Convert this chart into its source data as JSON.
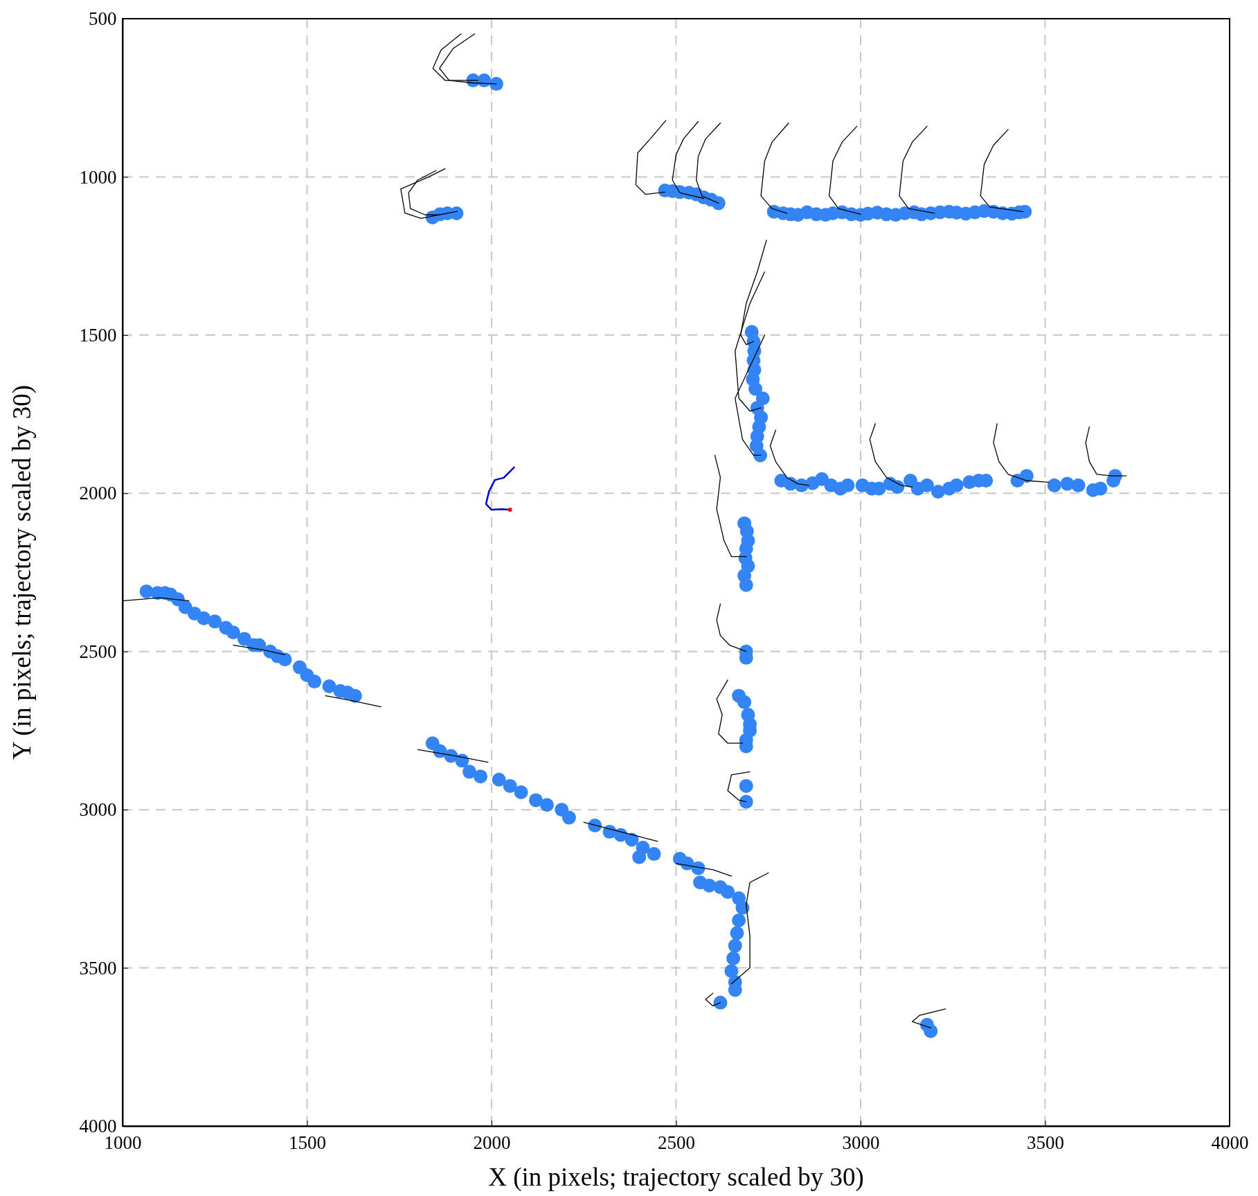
{
  "chart_data": {
    "type": "scatter",
    "xlabel": "X (in pixels; trajectory scaled by 30)",
    "ylabel": "Y (in pixels; trajectory scaled by 30)",
    "xlim": [
      1000,
      4000
    ],
    "xticks": [
      1000,
      1500,
      2000,
      2500,
      3000,
      3500,
      4000
    ],
    "ylim": [
      4000,
      500
    ],
    "yticks": [
      500,
      1000,
      1500,
      2000,
      2500,
      3000,
      3500,
      4000
    ],
    "grid": true,
    "line_style": "solid",
    "series": [
      {
        "type": "line",
        "color": "#000000",
        "x": [
          1954,
          1896,
          1859,
          1885,
          1950,
          2013
        ],
        "values": [
          548,
          594,
          657,
          695,
          703,
          706
        ]
      },
      {
        "type": "line",
        "color": "#000000",
        "x": [
          1917,
          1863,
          1841,
          1874,
          1963
        ],
        "values": [
          548,
          599,
          657,
          695,
          695
        ]
      },
      {
        "type": "line",
        "color": "#000000",
        "x": [
          1874,
          1830,
          1754,
          1765,
          1809,
          1907
        ],
        "values": [
          974,
          1000,
          1038,
          1114,
          1131,
          1109
        ]
      },
      {
        "type": "line",
        "color": "#000000",
        "x": [
          1850,
          1800,
          1775,
          1780,
          1820,
          1860
        ],
        "values": [
          980,
          1010,
          1050,
          1100,
          1120,
          1120
        ]
      },
      {
        "type": "line",
        "color": "#000000",
        "x": [
          2472,
          2430,
          2396,
          2391,
          2417,
          2470
        ],
        "values": [
          822,
          880,
          924,
          1025,
          1055,
          1048
        ]
      },
      {
        "type": "line",
        "color": "#000000",
        "x": [
          2560,
          2520,
          2500,
          2490,
          2510,
          2575
        ],
        "values": [
          825,
          880,
          930,
          1010,
          1050,
          1068
        ]
      },
      {
        "type": "line",
        "color": "#000000",
        "x": [
          2620,
          2580,
          2560,
          2555,
          2570,
          2615
        ],
        "values": [
          830,
          880,
          935,
          1010,
          1060,
          1083
        ]
      },
      {
        "type": "line",
        "color": "#000000",
        "x": [
          2805,
          2760,
          2740,
          2730,
          2760,
          2800
        ],
        "values": [
          830,
          890,
          950,
          1060,
          1100,
          1115
        ]
      },
      {
        "type": "line",
        "color": "#000000",
        "x": [
          2990,
          2950,
          2925,
          2915,
          2940,
          3000
        ],
        "values": [
          840,
          890,
          950,
          1060,
          1100,
          1118
        ]
      },
      {
        "type": "line",
        "color": "#000000",
        "x": [
          3180,
          3140,
          3115,
          3105,
          3130,
          3200
        ],
        "values": [
          840,
          890,
          950,
          1060,
          1100,
          1115
        ]
      },
      {
        "type": "line",
        "color": "#000000",
        "x": [
          3400,
          3360,
          3335,
          3325,
          3350,
          3440
        ],
        "values": [
          850,
          900,
          960,
          1060,
          1095,
          1110
        ]
      },
      {
        "type": "line",
        "color": "#000000",
        "x": [
          2745,
          2720,
          2690,
          2675,
          2690,
          2710
        ],
        "values": [
          1200,
          1300,
          1400,
          1500,
          1530,
          1520
        ]
      },
      {
        "type": "line",
        "color": "#000000",
        "x": [
          2740,
          2700,
          2660,
          2670,
          2700,
          2730
        ],
        "values": [
          1300,
          1400,
          1550,
          1700,
          1740,
          1730
        ]
      },
      {
        "type": "line",
        "color": "#000000",
        "x": [
          2740,
          2700,
          2660,
          2680,
          2710,
          2730
        ],
        "values": [
          1500,
          1600,
          1700,
          1830,
          1880,
          1880
        ]
      },
      {
        "type": "line",
        "color": "#000000",
        "x": [
          2770,
          2755,
          2770,
          2800,
          2830,
          2860
        ],
        "values": [
          1800,
          1850,
          1900,
          1950,
          1970,
          1975
        ]
      },
      {
        "type": "line",
        "color": "#000000",
        "x": [
          3040,
          3025,
          3040,
          3070,
          3110,
          3140
        ],
        "values": [
          1780,
          1830,
          1900,
          1950,
          1975,
          1980
        ]
      },
      {
        "type": "line",
        "color": "#000000",
        "x": [
          3370,
          3360,
          3375,
          3400,
          3450,
          3510
        ],
        "values": [
          1780,
          1840,
          1900,
          1940,
          1960,
          1965
        ]
      },
      {
        "type": "line",
        "color": "#000000",
        "x": [
          3620,
          3610,
          3620,
          3640,
          3680,
          3720
        ],
        "values": [
          1790,
          1840,
          1900,
          1940,
          1945,
          1945
        ]
      },
      {
        "type": "line",
        "color": "#000000",
        "x": [
          2605,
          2620,
          2610,
          2630,
          2650,
          2690
        ],
        "values": [
          1880,
          1950,
          2050,
          2150,
          2200,
          2200
        ]
      },
      {
        "type": "line",
        "color": "#000000",
        "x": [
          2620,
          2610,
          2620,
          2645,
          2690
        ],
        "values": [
          2350,
          2400,
          2450,
          2480,
          2500
        ]
      },
      {
        "type": "line",
        "color": "#000000",
        "x": [
          2640,
          2610,
          2625,
          2615,
          2640,
          2680
        ],
        "values": [
          2590,
          2650,
          2700,
          2760,
          2790,
          2790
        ]
      },
      {
        "type": "line",
        "color": "#000000",
        "x": [
          2700,
          2650,
          2640,
          2670,
          2690
        ],
        "values": [
          2880,
          2890,
          2940,
          2970,
          2975
        ]
      },
      {
        "type": "line",
        "color": "#000000",
        "x": [
          1000,
          1100,
          1180
        ],
        "values": [
          2340,
          2330,
          2340
        ]
      },
      {
        "type": "line",
        "color": "#000000",
        "x": [
          1300,
          1380,
          1440
        ],
        "values": [
          2480,
          2495,
          2510
        ]
      },
      {
        "type": "line",
        "color": "#000000",
        "x": [
          1550,
          1620,
          1700
        ],
        "values": [
          2640,
          2655,
          2675
        ]
      },
      {
        "type": "line",
        "color": "#000000",
        "x": [
          1800,
          1900,
          1990
        ],
        "values": [
          2810,
          2830,
          2850
        ]
      },
      {
        "type": "line",
        "color": "#000000",
        "x": [
          2250,
          2350,
          2450
        ],
        "values": [
          3040,
          3070,
          3100
        ]
      },
      {
        "type": "line",
        "color": "#000000",
        "x": [
          2500,
          2600,
          2650
        ],
        "values": [
          3170,
          3190,
          3210
        ]
      },
      {
        "type": "line",
        "color": "#000000",
        "x": [
          2750,
          2700,
          2690,
          2700,
          2700,
          2650
        ],
        "values": [
          3200,
          3230,
          3300,
          3400,
          3500,
          3550
        ]
      },
      {
        "type": "line",
        "color": "#000000",
        "x": [
          2600,
          2580,
          2600,
          2620
        ],
        "values": [
          3580,
          3600,
          3620,
          3610
        ]
      },
      {
        "type": "line",
        "color": "#000000",
        "x": [
          3230,
          3160,
          3140,
          3190
        ],
        "values": [
          3630,
          3650,
          3670,
          3690
        ]
      },
      {
        "marker": "circle",
        "color": "#3385f5",
        "x": [
          1950,
          1980,
          2013,
          1840,
          1860,
          1880,
          1905,
          2470,
          2490,
          2510,
          2535,
          2555,
          2575,
          2595,
          2615,
          2765,
          2790,
          2810,
          2830,
          2855,
          2880,
          2905,
          2925,
          2950,
          2975,
          3000,
          3020,
          3045,
          3070,
          3095,
          3120,
          3145,
          3165,
          3190,
          3215,
          3240,
          3260,
          3285,
          3310,
          3335,
          3360,
          3385,
          3410,
          3430,
          3445,
          2705,
          2710,
          2712,
          2710,
          2712,
          2708,
          2715,
          2735,
          2720,
          2730,
          2725,
          2720,
          2718,
          2728,
          2785,
          2810,
          2840,
          2870,
          2895,
          2920,
          2945,
          2965,
          3005,
          3030,
          3050,
          3080,
          3100,
          3135,
          3155,
          3180,
          3210,
          3240,
          3260,
          3295,
          3320,
          3340,
          3425,
          3450,
          3525,
          3560,
          3590,
          3630,
          3650,
          3685,
          3690,
          2685,
          2692,
          2695,
          2690,
          2688,
          2695,
          2685,
          2690,
          2690,
          2690,
          2670,
          2685,
          2695,
          2700,
          2700,
          2690,
          2690,
          2690,
          2690,
          1065,
          1095,
          1115,
          1130,
          1150,
          1170,
          1195,
          1220,
          1250,
          1280,
          1300,
          1330,
          1355,
          1370,
          1400,
          1420,
          1440,
          1480,
          1500,
          1520,
          1560,
          1590,
          1610,
          1630,
          1840,
          1860,
          1890,
          1920,
          1940,
          1970,
          2020,
          2050,
          2080,
          2120,
          2150,
          2190,
          2210,
          2280,
          2320,
          2350,
          2380,
          2410,
          2400,
          2440,
          2510,
          2530,
          2560,
          2565,
          2590,
          2620,
          2640,
          2670,
          2680,
          2670,
          2665,
          2660,
          2655,
          2650,
          2660,
          2660,
          2620,
          3180,
          3190
        ],
        "values": [
          695,
          695,
          706,
          1128,
          1118,
          1115,
          1115,
          1043,
          1045,
          1048,
          1050,
          1055,
          1065,
          1072,
          1083,
          1110,
          1115,
          1118,
          1120,
          1112,
          1118,
          1120,
          1115,
          1112,
          1118,
          1120,
          1116,
          1113,
          1118,
          1120,
          1115,
          1112,
          1118,
          1115,
          1112,
          1110,
          1113,
          1116,
          1112,
          1108,
          1110,
          1115,
          1116,
          1112,
          1110,
          1490,
          1520,
          1550,
          1580,
          1610,
          1640,
          1670,
          1700,
          1730,
          1760,
          1790,
          1820,
          1850,
          1880,
          1960,
          1970,
          1975,
          1968,
          1955,
          1975,
          1985,
          1975,
          1975,
          1985,
          1985,
          1970,
          1980,
          1960,
          1985,
          1975,
          1995,
          1985,
          1975,
          1965,
          1960,
          1960,
          1960,
          1945,
          1975,
          1970,
          1975,
          1990,
          1985,
          1960,
          1945,
          2095,
          2120,
          2150,
          2175,
          2205,
          2230,
          2260,
          2290,
          2500,
          2520,
          2640,
          2660,
          2700,
          2730,
          2750,
          2780,
          2800,
          2925,
          2975,
          2310,
          2315,
          2315,
          2320,
          2335,
          2360,
          2380,
          2395,
          2405,
          2425,
          2440,
          2460,
          2480,
          2480,
          2500,
          2515,
          2525,
          2550,
          2575,
          2595,
          2610,
          2625,
          2630,
          2640,
          2790,
          2815,
          2830,
          2845,
          2880,
          2895,
          2905,
          2925,
          2945,
          2970,
          2985,
          3000,
          3025,
          3050,
          3070,
          3080,
          3095,
          3120,
          3150,
          3140,
          3155,
          3170,
          3185,
          3230,
          3240,
          3245,
          3260,
          3280,
          3310,
          3350,
          3390,
          3430,
          3470,
          3510,
          3545,
          3570,
          3610,
          3680,
          3700
        ]
      },
      {
        "type": "line",
        "color": "#0000cc",
        "x": [
          2061,
          2033,
          2009,
          1993,
          1985,
          2000,
          2026,
          2050
        ],
        "values": [
          1918,
          1951,
          1958,
          1994,
          2034,
          2052,
          2050,
          2052
        ]
      },
      {
        "type": "scatter",
        "color": "#ff0000",
        "x": [
          2050
        ],
        "values": [
          2052
        ]
      }
    ]
  }
}
